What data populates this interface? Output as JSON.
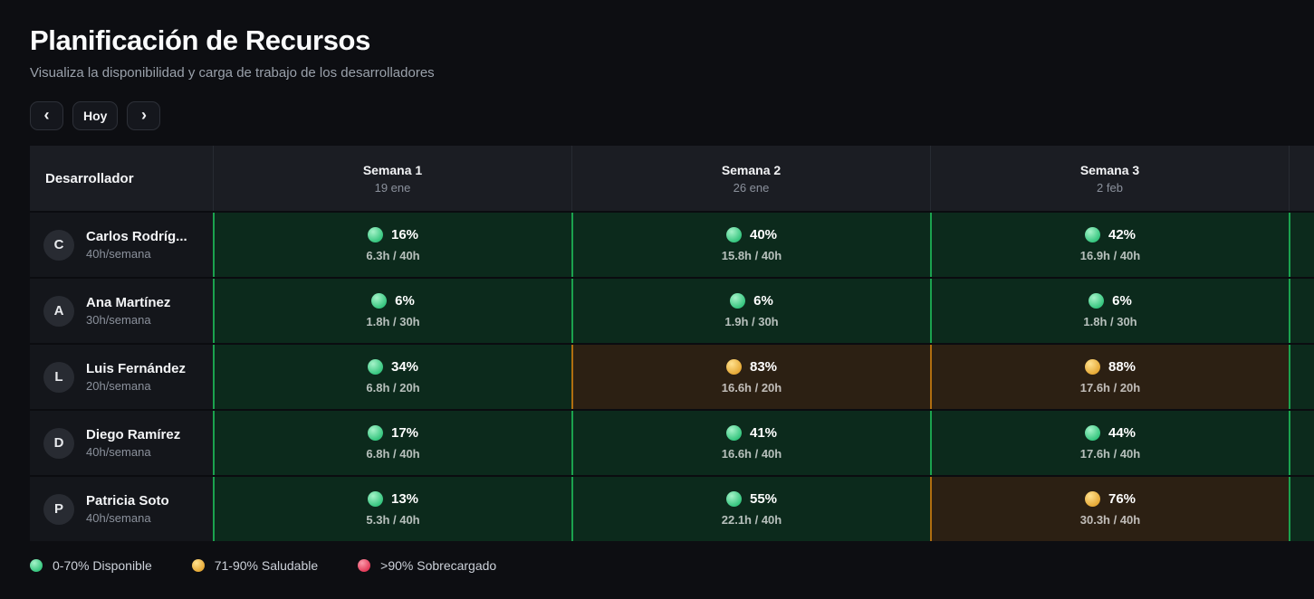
{
  "page": {
    "title": "Planificación de Recursos",
    "subtitle": "Visualiza la disponibilidad y carga de trabajo de los desarrolladores"
  },
  "toolbar": {
    "prev_icon": "‹",
    "today_label": "Hoy",
    "next_icon": "›"
  },
  "table": {
    "dev_header": "Desarrollador",
    "weeks": [
      {
        "label": "Semana 1",
        "date": "19 ene"
      },
      {
        "label": "Semana 2",
        "date": "26 ene"
      },
      {
        "label": "Semana 3",
        "date": "2 feb"
      },
      {
        "label": "",
        "date": ""
      }
    ],
    "developers": [
      {
        "initial": "C",
        "name": "Carlos Rodríg...",
        "capacity": "40h/semana",
        "cells": [
          {
            "pct": "16%",
            "hours": "6.3h / 40h",
            "status": "available"
          },
          {
            "pct": "40%",
            "hours": "15.8h / 40h",
            "status": "available"
          },
          {
            "pct": "42%",
            "hours": "16.9h / 40h",
            "status": "available"
          },
          {
            "pct": "",
            "hours": "",
            "status": "available"
          }
        ]
      },
      {
        "initial": "A",
        "name": "Ana Martínez",
        "capacity": "30h/semana",
        "cells": [
          {
            "pct": "6%",
            "hours": "1.8h / 30h",
            "status": "available"
          },
          {
            "pct": "6%",
            "hours": "1.9h / 30h",
            "status": "available"
          },
          {
            "pct": "6%",
            "hours": "1.8h / 30h",
            "status": "available"
          },
          {
            "pct": "",
            "hours": "",
            "status": "available"
          }
        ]
      },
      {
        "initial": "L",
        "name": "Luis Fernández",
        "capacity": "20h/semana",
        "cells": [
          {
            "pct": "34%",
            "hours": "6.8h / 20h",
            "status": "available"
          },
          {
            "pct": "83%",
            "hours": "16.6h / 20h",
            "status": "healthy"
          },
          {
            "pct": "88%",
            "hours": "17.6h / 20h",
            "status": "healthy"
          },
          {
            "pct": "",
            "hours": "",
            "status": "available"
          }
        ]
      },
      {
        "initial": "D",
        "name": "Diego Ramírez",
        "capacity": "40h/semana",
        "cells": [
          {
            "pct": "17%",
            "hours": "6.8h / 40h",
            "status": "available"
          },
          {
            "pct": "41%",
            "hours": "16.6h / 40h",
            "status": "available"
          },
          {
            "pct": "44%",
            "hours": "17.6h / 40h",
            "status": "available"
          },
          {
            "pct": "",
            "hours": "",
            "status": "available"
          }
        ]
      },
      {
        "initial": "P",
        "name": "Patricia Soto",
        "capacity": "40h/semana",
        "cells": [
          {
            "pct": "13%",
            "hours": "5.3h / 40h",
            "status": "available"
          },
          {
            "pct": "55%",
            "hours": "22.1h / 40h",
            "status": "available"
          },
          {
            "pct": "76%",
            "hours": "30.3h / 40h",
            "status": "healthy"
          },
          {
            "pct": "",
            "hours": "",
            "status": "available"
          }
        ]
      }
    ]
  },
  "legend": [
    {
      "dot": "green",
      "color": "#35c57e",
      "label": "0-70% Disponible"
    },
    {
      "dot": "yellow",
      "color": "#e5a835",
      "label": "71-90% Saludable"
    },
    {
      "dot": "red",
      "color": "#e23a58",
      "label": ">90% Sobrecargado"
    }
  ],
  "colors": {
    "available_border": "#1ba24e",
    "available_bg": "#0c2a1c",
    "healthy_border": "#b06e10",
    "healthy_bg": "#2c2013",
    "page_bg": "#0d0e12"
  }
}
